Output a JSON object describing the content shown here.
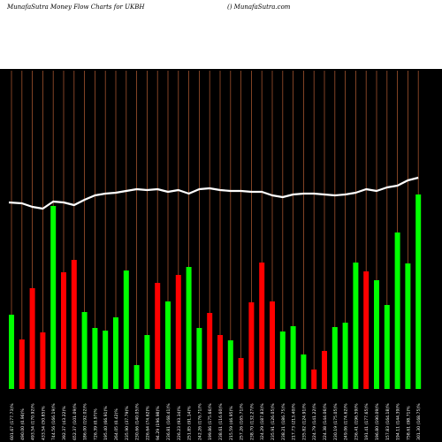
{
  "header": {
    "title_left": "MunafaSutra  Money Flow  Charts for UKBH",
    "title_right": "() MunafaSutra.com"
  },
  "colors": {
    "up": "#00ff00",
    "down": "#ff0000",
    "grid": "#a0522d",
    "line": "#ffffff",
    "background": "#000000"
  },
  "chart_data": {
    "type": "bar",
    "title": "MunafaSutra  Money Flow  Charts for UKBH",
    "categories": [
      "601.67 (177.73)%",
      "490.00 (0.96)%",
      "493.54 (170.92)%",
      "433.54 (50.85)%",
      "744.56 (166.19)%",
      "392.37 (43.22)%",
      "652.37 (101.09)%",
      "186.00 (192.02)%",
      "726.39 (0.97)%",
      "195.40 (66.91)%",
      "264.05 (0.42)%",
      "235.90 (37.79)%",
      "230.66 (140.05)%",
      "226.64 (74.62)%",
      "94.29 (196.98)%",
      "236.81 (168.41)%",
      "226.23 (93.34)%",
      "251.85 (91.14)%",
      "242.26 (176.71)%",
      "199.86 (175.66)%",
      "238.61 (116.60)%",
      "215.59 (46.95)%",
      "257.26 (165.71)%",
      "238.70 (132.27)%",
      "324.29 (187.83)%",
      "235.91 (126.05)%",
      "238.21 (186.75)%",
      "217.73 (213.40)%",
      "235.82 (124.91)%",
      "224.79 (141.22)%",
      "224.38 (144.06)%",
      "230.19 (175.05)%",
      "249.06 (174.62)%",
      "236.41 (196.59)%",
      "191.41 (177.65)%",
      "196.80 (190.09)%",
      "157.83 (164.18)%",
      "194.11 (144.39)%",
      "758.61 (98.71)%",
      "301.30 (168.75)%"
    ],
    "series": [
      {
        "values": [
          84,
          56,
          114,
          64,
          207,
          132,
          146,
          87,
          69,
          66,
          81,
          134,
          27,
          61,
          120,
          99,
          129,
          138,
          69,
          86,
          61,
          55,
          35,
          98,
          143,
          99,
          65,
          71,
          39,
          22,
          43,
          70,
          75,
          143,
          133,
          123,
          95,
          177,
          142,
          220
        ],
        "directions": [
          "up",
          "down",
          "down",
          "down",
          "up",
          "down",
          "down",
          "up",
          "up",
          "up",
          "up",
          "up",
          "up",
          "up",
          "down",
          "up",
          "down",
          "up",
          "up",
          "down",
          "down",
          "up",
          "down",
          "down",
          "down",
          "down",
          "up",
          "up",
          "up",
          "down",
          "down",
          "up",
          "up",
          "up",
          "down",
          "up",
          "up",
          "up",
          "up",
          "up"
        ]
      },
      {
        "name": "",
        "type": "line",
        "values": [
          211,
          210,
          206,
          204,
          212,
          211,
          208,
          214,
          219,
          221,
          222,
          224,
          226,
          225,
          226,
          223,
          225,
          221,
          226,
          227,
          225,
          224,
          224,
          223,
          223,
          219,
          217,
          220,
          221,
          221,
          220,
          219,
          220,
          222,
          226,
          224,
          228,
          230,
          236,
          239
        ]
      }
    ],
    "ylim": [
      0,
      360
    ],
    "xlabel": "",
    "ylabel": "",
    "grid": true
  }
}
